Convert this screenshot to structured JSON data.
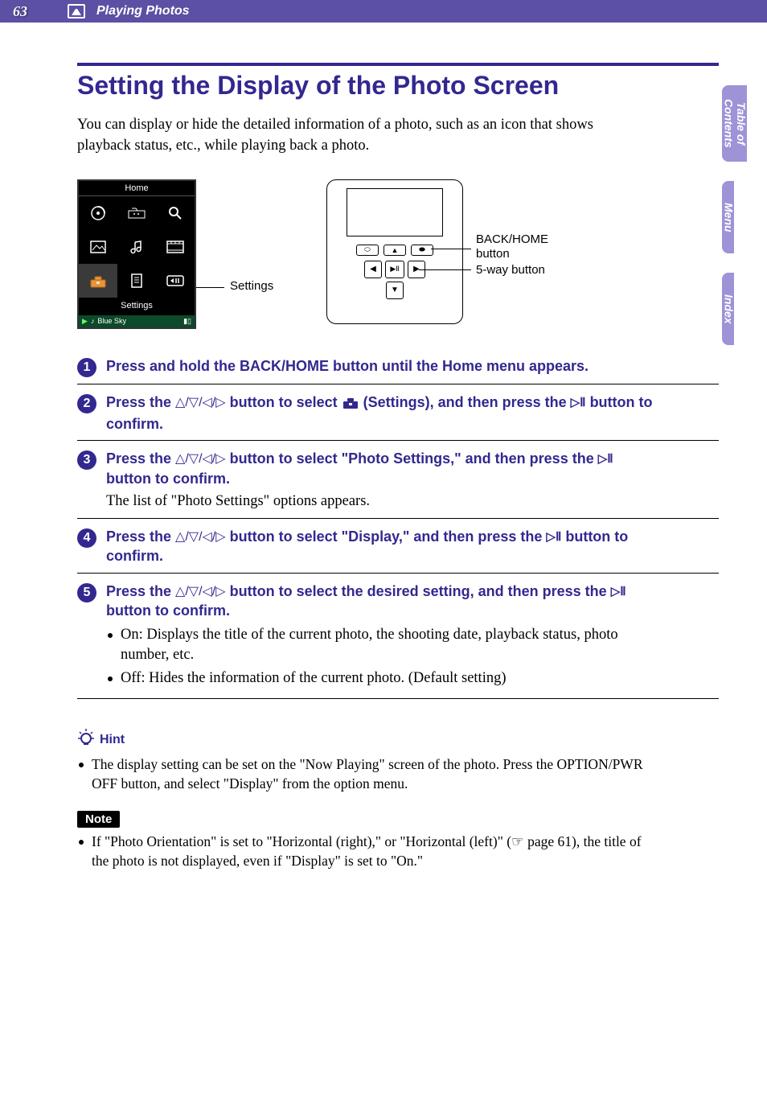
{
  "page_number": "63",
  "section_name": "Playing Photos",
  "side_tabs": [
    "Table of\nContents",
    "Menu",
    "Index"
  ],
  "title": "Setting the Display of the Photo Screen",
  "intro": "You can display or hide the detailed information of a photo, such as an icon that shows playback status, etc., while playing back a photo.",
  "device_shot": {
    "title": "Home",
    "rows": [
      [
        {
          "icon": "nowplaying"
        },
        {
          "icon": "intelligent"
        },
        {
          "icon": "search"
        }
      ],
      [
        {
          "icon": "photo"
        },
        {
          "icon": "music"
        },
        {
          "icon": "video"
        }
      ],
      [
        {
          "icon": "settings",
          "selected": true
        },
        {
          "icon": "playlists"
        },
        {
          "icon": "shuffle"
        }
      ]
    ],
    "selected_label": "Settings",
    "footer_track": "Blue Sky",
    "label": "Settings",
    "title_bg": "#000000",
    "grid_bg": "#000000",
    "footer_bg": "#0b4a2a",
    "icon_color": "#ffffff"
  },
  "player_diagram": {
    "back_home_label": "BACK/HOME button",
    "fiveway_label": "5-way button"
  },
  "steps": [
    {
      "num": "1",
      "title_pre": "Press and hold the BACK/HOME button until the Home menu appears."
    },
    {
      "num": "2",
      "title_pre": "Press the ",
      "has_dir": true,
      "title_mid": " button to select ",
      "has_toolbox": true,
      "title_mid2": " (Settings), and then press the ",
      "has_play": true,
      "title_post": " button to confirm."
    },
    {
      "num": "3",
      "title_pre": "Press the ",
      "has_dir": true,
      "title_mid": " button to select \"Photo Settings,\" and then press the ",
      "has_play": true,
      "title_post": " button to confirm.",
      "meta": "The list of \"Photo Settings\" options appears."
    },
    {
      "num": "4",
      "title_pre": "Press the ",
      "has_dir": true,
      "title_mid": " button to select \"Display,\" and then press the ",
      "has_play": true,
      "title_post": " button to confirm."
    },
    {
      "num": "5",
      "title_pre": "Press the ",
      "has_dir": true,
      "title_mid": " button to select the desired setting, and then press the ",
      "has_play": true,
      "title_post": " button to confirm.",
      "bullets": [
        "On: Displays the title of the current photo, the shooting date, playback status, photo number, etc.",
        "Off: Hides the information of the current photo. (Default setting)"
      ]
    }
  ],
  "hint_label": "Hint",
  "hint_text": "The display setting can be set on the \"Now Playing\" screen of the photo. Press the OPTION/PWR OFF button, and select \"Display\" from the option menu.",
  "note_label": "Note",
  "note_text_pre": "If \"Photo Orientation\" is set to \"Horizontal (right),\" or \"Horizontal (left)\" (",
  "note_page_ref": "☞ page 61",
  "note_text_post": "), the title of the photo is not displayed, even if \"Display\" is set to \"On.\"",
  "colors": {
    "header_bg": "#5b50a3",
    "accent": "#32288f",
    "tab_bg": "#9d93d6"
  }
}
